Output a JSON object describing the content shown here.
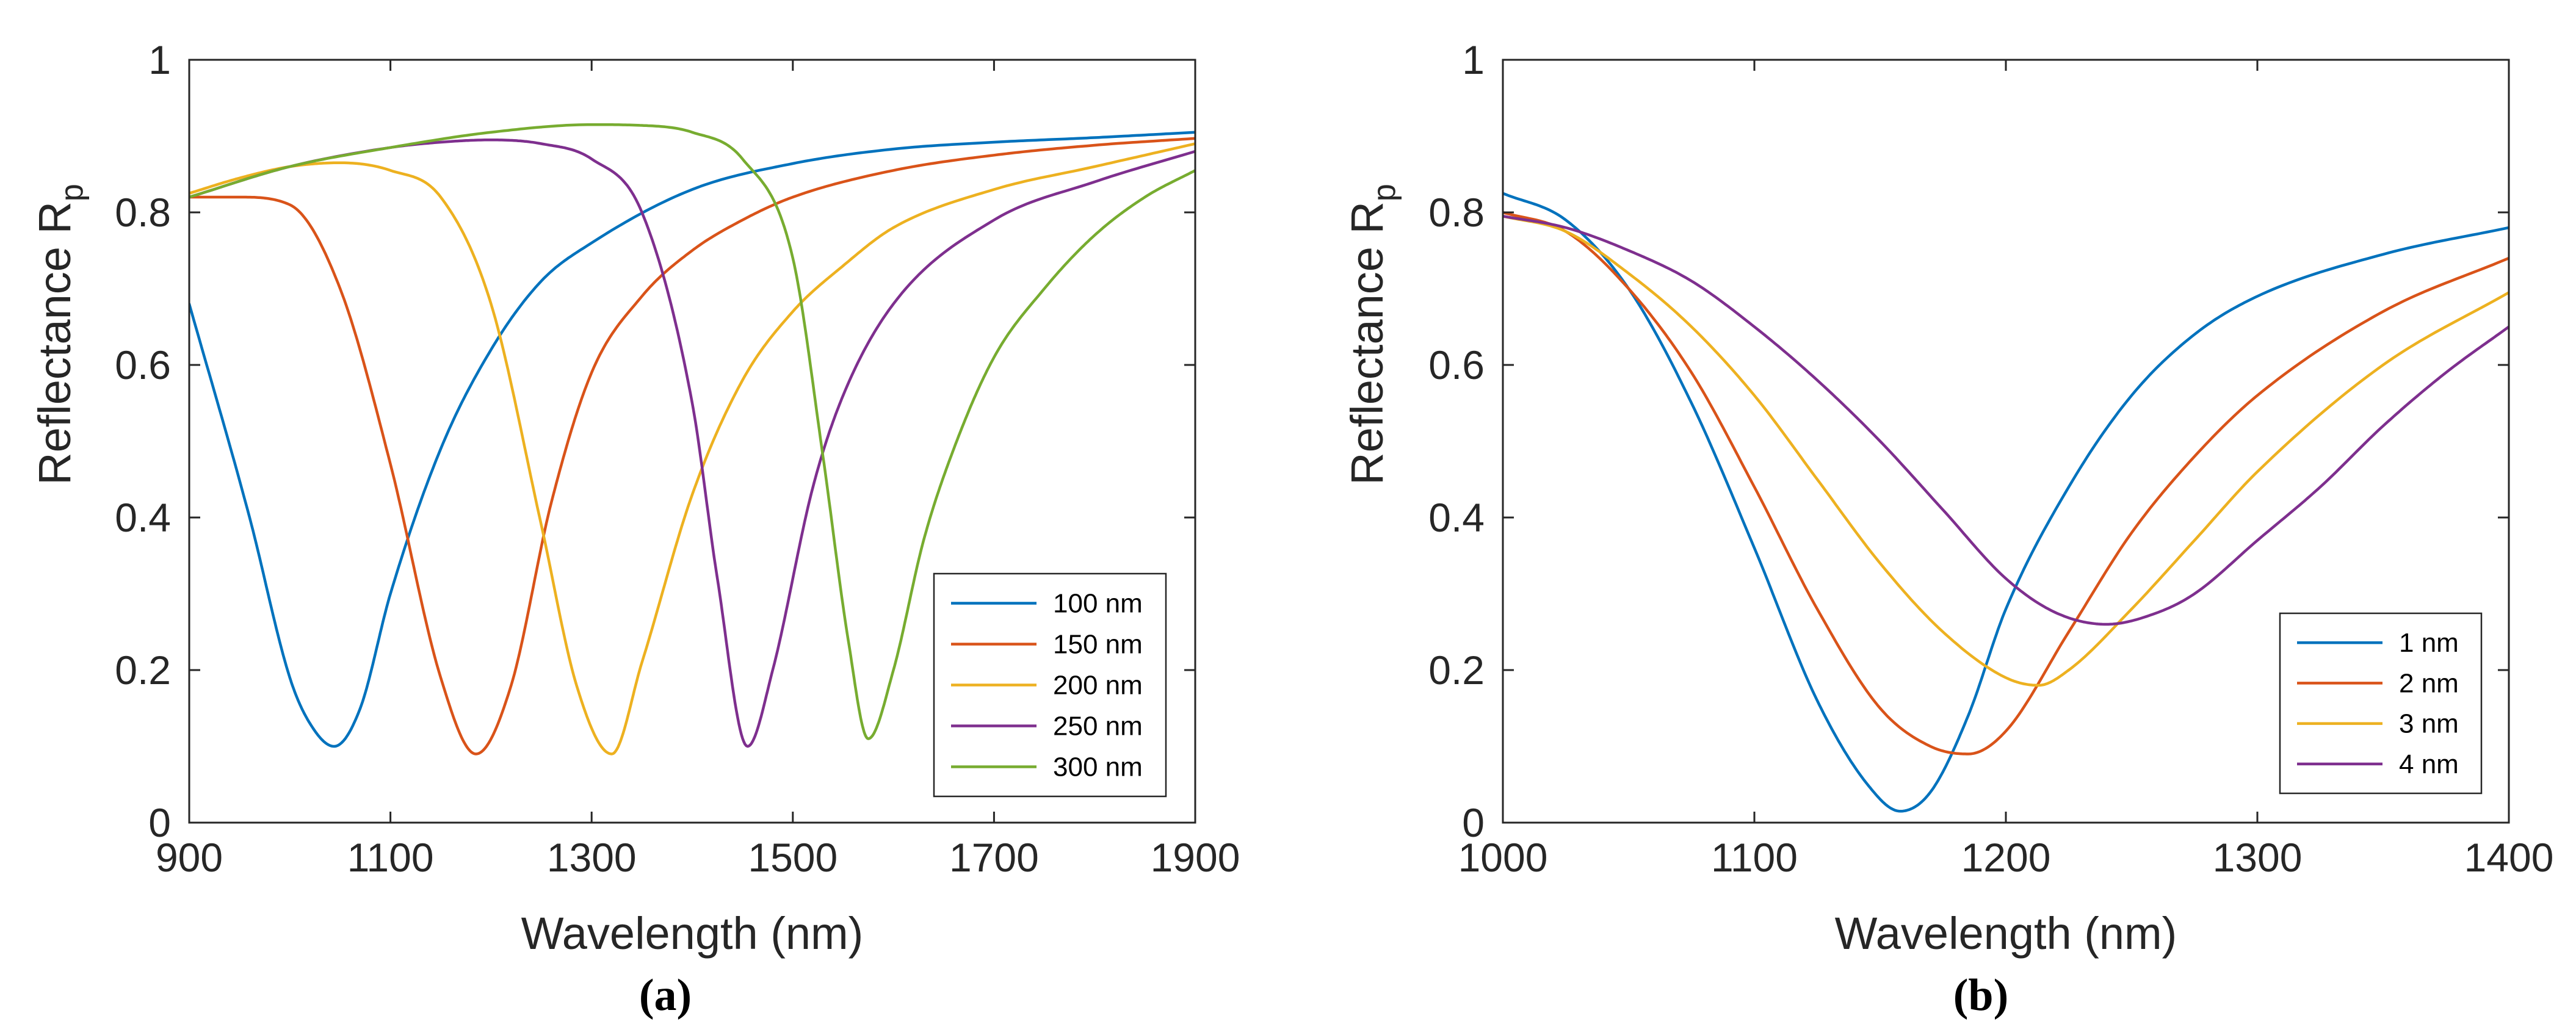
{
  "chart_data": [
    {
      "type": "line",
      "panel_label": "(a)",
      "xlabel": "Wavelength (nm)",
      "ylabel": "Reflectance R",
      "ylabel_sub": "p",
      "xlim": [
        900,
        1900
      ],
      "ylim": [
        0,
        1
      ],
      "xticks": [
        900,
        1100,
        1300,
        1500,
        1700,
        1900
      ],
      "yticks": [
        0,
        0.2,
        0.4,
        0.6,
        0.8,
        1
      ],
      "legend_position": "bottom-right",
      "series": [
        {
          "name": "100 nm",
          "color": "#0072BD",
          "x": [
            900,
            960,
            1000,
            1020,
            1044,
            1070,
            1100,
            1150,
            1200,
            1250,
            1300,
            1400,
            1500,
            1600,
            1700,
            1800,
            1900
          ],
          "y": [
            0.68,
            0.4,
            0.19,
            0.13,
            0.1,
            0.15,
            0.3,
            0.49,
            0.62,
            0.71,
            0.76,
            0.83,
            0.864,
            0.883,
            0.892,
            0.898,
            0.905
          ]
        },
        {
          "name": "150 nm",
          "color": "#D95319",
          "x": [
            900,
            950,
            1000,
            1050,
            1100,
            1150,
            1185,
            1220,
            1260,
            1300,
            1350,
            1400,
            1450,
            1500,
            1600,
            1700,
            1800,
            1900
          ],
          "y": [
            0.82,
            0.82,
            0.81,
            0.7,
            0.47,
            0.19,
            0.09,
            0.18,
            0.42,
            0.59,
            0.69,
            0.75,
            0.79,
            0.82,
            0.855,
            0.875,
            0.888,
            0.897
          ]
        },
        {
          "name": "200 nm",
          "color": "#EDB120",
          "x": [
            900,
            950,
            1000,
            1050,
            1100,
            1150,
            1200,
            1250,
            1285,
            1320,
            1350,
            1400,
            1450,
            1500,
            1550,
            1600,
            1700,
            1800,
            1900
          ],
          "y": [
            0.825,
            0.845,
            0.86,
            0.865,
            0.855,
            0.82,
            0.68,
            0.39,
            0.18,
            0.09,
            0.21,
            0.43,
            0.58,
            0.67,
            0.73,
            0.78,
            0.83,
            0.86,
            0.89
          ]
        },
        {
          "name": "250 nm",
          "color": "#7E2F8E",
          "x": [
            900,
            1000,
            1100,
            1150,
            1200,
            1250,
            1300,
            1350,
            1400,
            1425,
            1455,
            1480,
            1520,
            1550,
            1600,
            1700,
            1800,
            1900
          ],
          "y": [
            0.82,
            0.86,
            0.885,
            0.892,
            0.895,
            0.89,
            0.87,
            0.8,
            0.55,
            0.32,
            0.1,
            0.2,
            0.44,
            0.56,
            0.68,
            0.79,
            0.84,
            0.88
          ]
        },
        {
          "name": "300 nm",
          "color": "#77AC30",
          "x": [
            900,
            1000,
            1100,
            1200,
            1300,
            1350,
            1400,
            1450,
            1500,
            1530,
            1555,
            1575,
            1600,
            1630,
            1660,
            1700,
            1750,
            1800,
            1850,
            1900
          ],
          "y": [
            0.82,
            0.86,
            0.885,
            0.905,
            0.915,
            0.914,
            0.905,
            0.87,
            0.74,
            0.48,
            0.24,
            0.11,
            0.2,
            0.37,
            0.49,
            0.61,
            0.7,
            0.77,
            0.82,
            0.855
          ]
        }
      ]
    },
    {
      "type": "line",
      "panel_label": "(b)",
      "xlabel": "Wavelength (nm)",
      "ylabel": "Reflectance R",
      "ylabel_sub": "p",
      "xlim": [
        1000,
        1400
      ],
      "ylim": [
        0,
        1
      ],
      "xticks": [
        1000,
        1100,
        1200,
        1300,
        1400
      ],
      "yticks": [
        0,
        0.2,
        0.4,
        0.6,
        0.8,
        1
      ],
      "legend_position": "bottom-right",
      "series": [
        {
          "name": "1 nm",
          "color": "#0072BD",
          "x": [
            1000,
            1025,
            1050,
            1075,
            1100,
            1125,
            1145,
            1158,
            1170,
            1185,
            1200,
            1225,
            1250,
            1275,
            1300,
            1350,
            1400
          ],
          "y": [
            0.825,
            0.79,
            0.7,
            0.55,
            0.36,
            0.16,
            0.05,
            0.015,
            0.04,
            0.14,
            0.28,
            0.44,
            0.56,
            0.64,
            0.69,
            0.745,
            0.78
          ]
        },
        {
          "name": "2 nm",
          "color": "#D95319",
          "x": [
            1000,
            1025,
            1050,
            1075,
            1100,
            1125,
            1150,
            1170,
            1185,
            1200,
            1225,
            1250,
            1275,
            1300,
            1350,
            1400
          ],
          "y": [
            0.8,
            0.775,
            0.7,
            0.59,
            0.44,
            0.28,
            0.15,
            0.1,
            0.09,
            0.12,
            0.25,
            0.38,
            0.48,
            0.56,
            0.67,
            0.74
          ]
        },
        {
          "name": "3 nm",
          "color": "#EDB120",
          "x": [
            1000,
            1025,
            1050,
            1075,
            1100,
            1125,
            1150,
            1175,
            1200,
            1213,
            1225,
            1250,
            1275,
            1300,
            1350,
            1400
          ],
          "y": [
            0.795,
            0.775,
            0.72,
            0.65,
            0.56,
            0.45,
            0.34,
            0.25,
            0.19,
            0.18,
            0.2,
            0.28,
            0.37,
            0.46,
            0.6,
            0.695
          ]
        },
        {
          "name": "4 nm",
          "color": "#7E2F8E",
          "x": [
            1000,
            1025,
            1050,
            1075,
            1100,
            1125,
            1150,
            1175,
            1200,
            1220,
            1240,
            1260,
            1275,
            1300,
            1325,
            1350,
            1375,
            1400
          ],
          "y": [
            0.795,
            0.78,
            0.75,
            0.71,
            0.65,
            0.58,
            0.5,
            0.41,
            0.32,
            0.275,
            0.26,
            0.275,
            0.3,
            0.37,
            0.44,
            0.52,
            0.59,
            0.65
          ]
        }
      ]
    }
  ]
}
